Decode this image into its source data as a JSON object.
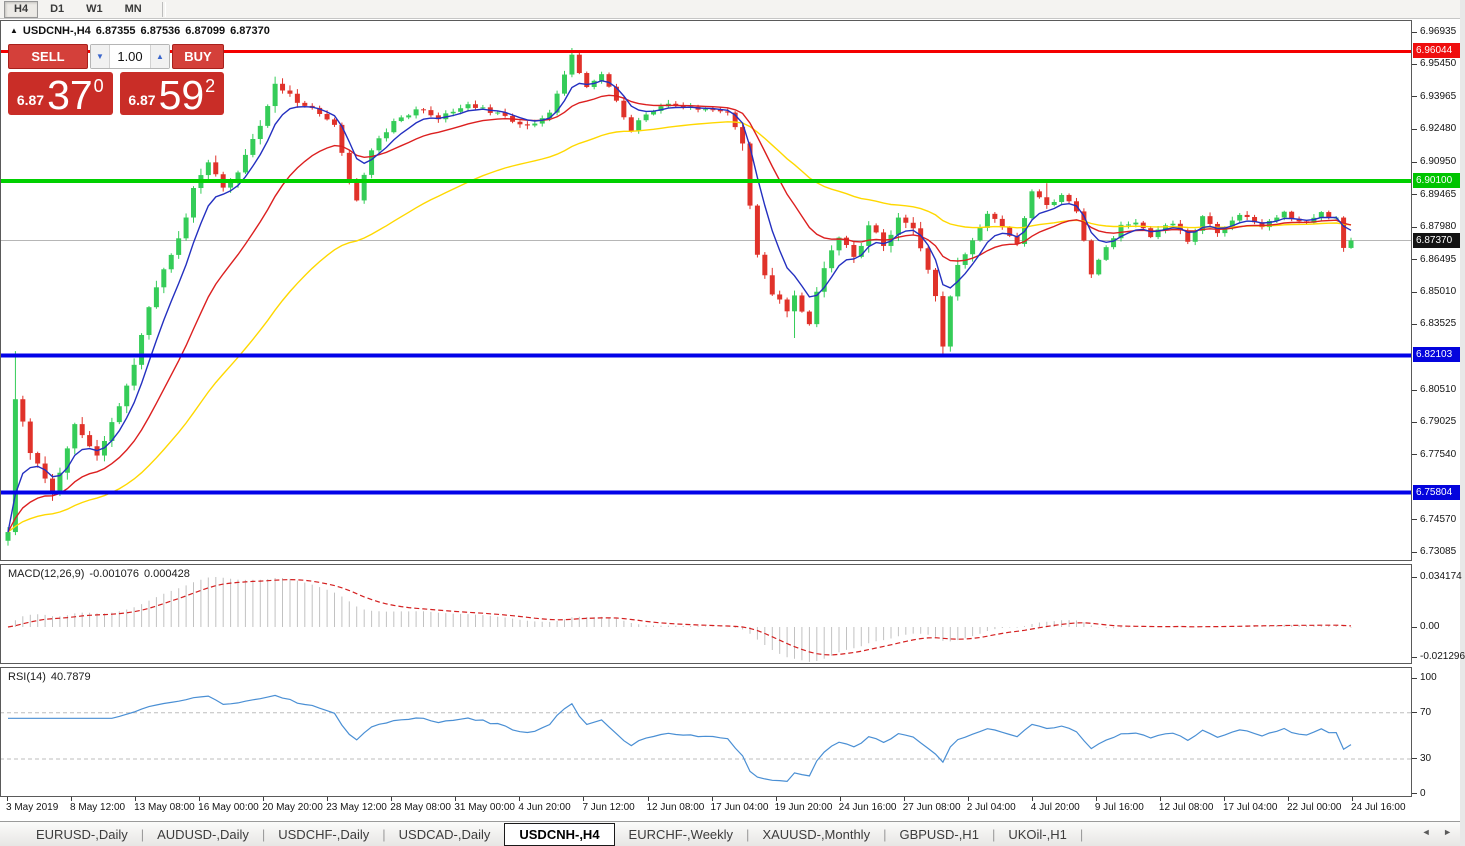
{
  "toolbar": {
    "timeframes": [
      {
        "label": "H4",
        "active": true
      },
      {
        "label": "D1",
        "active": false
      },
      {
        "label": "W1",
        "active": false
      },
      {
        "label": "MN",
        "active": false
      }
    ]
  },
  "chart_header": {
    "arrow": "▲",
    "symbol_label": "USDCNH-,H4",
    "open": "6.87355",
    "high": "6.87536",
    "low": "6.87099",
    "close": "6.87370"
  },
  "trade_panel": {
    "sell_label": "SELL",
    "buy_label": "BUY",
    "volume_value": "1.00",
    "spinner_down": "▼",
    "spinner_up": "▲",
    "sell_price": {
      "prefix": "6.87",
      "big": "37",
      "sup": "0"
    },
    "buy_price": {
      "prefix": "6.87",
      "big": "59",
      "sup": "2"
    }
  },
  "price_axis": {
    "ticks": [
      "6.96935",
      "6.95450",
      "6.93965",
      "6.92480",
      "6.90950",
      "6.89465",
      "6.87980",
      "6.86495",
      "6.85010",
      "6.83525",
      "6.80510",
      "6.79025",
      "6.77540",
      "6.74570",
      "6.73085"
    ],
    "badges": [
      {
        "value": "6.96044",
        "price": 6.96044,
        "color": "#ef0e0e",
        "name": "resistance-level"
      },
      {
        "value": "6.90100",
        "price": 6.901,
        "color": "#00c400",
        "name": "mid-level"
      },
      {
        "value": "6.87370",
        "price": 6.8737,
        "color": "#131313",
        "name": "current-price"
      },
      {
        "value": "6.82103",
        "price": 6.82103,
        "color": "#0404dd",
        "name": "support-level-1"
      },
      {
        "value": "6.75804",
        "price": 6.75804,
        "color": "#0404dd",
        "name": "support-level-2"
      }
    ]
  },
  "time_axis": {
    "labels": [
      "3 May 2019",
      "8 May 12:00",
      "13 May 08:00",
      "16 May 00:00",
      "20 May 20:00",
      "23 May 12:00",
      "28 May 08:00",
      "31 May 00:00",
      "4 Jun 20:00",
      "7 Jun 12:00",
      "12 Jun 08:00",
      "17 Jun 04:00",
      "19 Jun 20:00",
      "24 Jun 16:00",
      "27 Jun 08:00",
      "2 Jul 04:00",
      "4 Jul 20:00",
      "9 Jul 16:00",
      "12 Jul 08:00",
      "17 Jul 04:00",
      "22 Jul 00:00",
      "24 Jul 16:00"
    ]
  },
  "macd_panel": {
    "label": "MACD(12,26,9)",
    "value_main": "-0.001076",
    "value_signal": "0.000428",
    "scale_top": "0.034174",
    "scale_zero": "0.00",
    "scale_bottom": "-0.021296"
  },
  "rsi_panel": {
    "label": "RSI(14)",
    "value": "40.7879",
    "scale": [
      "100",
      "70",
      "30",
      "0"
    ]
  },
  "tabs": {
    "items": [
      {
        "label": "EURUSD-,Daily",
        "active": false
      },
      {
        "label": "AUDUSD-,Daily",
        "active": false
      },
      {
        "label": "USDCHF-,Daily",
        "active": false
      },
      {
        "label": "USDCAD-,Daily",
        "active": false
      },
      {
        "label": "USDCNH-,H4",
        "active": true
      },
      {
        "label": "EURCHF-,Weekly",
        "active": false
      },
      {
        "label": "XAUUSD-,Monthly",
        "active": false
      },
      {
        "label": "GBPUSD-,H1",
        "active": false
      },
      {
        "label": "UKOil-,H1",
        "active": false
      }
    ],
    "scroll_left": "◄",
    "scroll_right": "►"
  },
  "colors": {
    "up": "#35cc58",
    "down": "#e0322a",
    "ma_fast": "#2430c0",
    "ma_mid": "#dc2020",
    "ma_slow": "#ffd800",
    "macd_hist": "#c2c2c2",
    "macd_signal": "#d42020",
    "rsi_line": "#4a8fd4",
    "current_line": "#b6b6b6"
  },
  "chart_data": {
    "type": "candlestick",
    "symbol": "USDCNH",
    "timeframe": "H4",
    "bar_count": 182,
    "visible_range": {
      "price_min": 6.73085,
      "price_max": 6.96935,
      "time_start": "3 May 2019",
      "time_end": "24 Jul 16:00"
    },
    "last_ohlc": {
      "open": 6.87355,
      "high": 6.87536,
      "low": 6.87099,
      "close": 6.8737
    },
    "horizontal_lines": [
      {
        "price": 6.96044,
        "color": "red",
        "style": "solid"
      },
      {
        "price": 6.901,
        "color": "green",
        "style": "solid"
      },
      {
        "price": 6.82103,
        "color": "blue",
        "style": "solid"
      },
      {
        "price": 6.75804,
        "color": "blue",
        "style": "solid"
      },
      {
        "price": 6.8737,
        "color": "gray",
        "style": "current"
      }
    ],
    "close_path": [
      [
        0,
        6.74
      ],
      [
        1,
        6.802
      ],
      [
        3,
        6.776
      ],
      [
        6,
        6.758
      ],
      [
        9,
        6.79
      ],
      [
        12,
        6.776
      ],
      [
        15,
        6.796
      ],
      [
        17,
        6.818
      ],
      [
        19,
        6.842
      ],
      [
        21,
        6.862
      ],
      [
        23,
        6.874
      ],
      [
        25,
        6.896
      ],
      [
        27,
        6.908
      ],
      [
        29,
        6.898
      ],
      [
        31,
        6.904
      ],
      [
        34,
        6.928
      ],
      [
        36,
        6.944
      ],
      [
        38,
        6.94
      ],
      [
        41,
        6.934
      ],
      [
        44,
        6.926
      ],
      [
        46,
        6.902
      ],
      [
        47,
        6.893
      ],
      [
        49,
        6.916
      ],
      [
        52,
        6.928
      ],
      [
        55,
        6.934
      ],
      [
        58,
        6.93
      ],
      [
        62,
        6.936
      ],
      [
        66,
        6.932
      ],
      [
        70,
        6.926
      ],
      [
        73,
        6.932
      ],
      [
        75,
        6.95
      ],
      [
        76,
        6.958
      ],
      [
        78,
        6.944
      ],
      [
        80,
        6.95
      ],
      [
        82,
        6.938
      ],
      [
        84,
        6.924
      ],
      [
        86,
        6.932
      ],
      [
        89,
        6.936
      ],
      [
        93,
        6.934
      ],
      [
        97,
        6.932
      ],
      [
        99,
        6.92
      ],
      [
        100,
        6.89
      ],
      [
        101,
        6.868
      ],
      [
        103,
        6.85
      ],
      [
        105,
        6.84
      ],
      [
        106,
        6.848
      ],
      [
        108,
        6.836
      ],
      [
        110,
        6.862
      ],
      [
        112,
        6.876
      ],
      [
        114,
        6.866
      ],
      [
        116,
        6.88
      ],
      [
        118,
        6.872
      ],
      [
        120,
        6.884
      ],
      [
        122,
        6.878
      ],
      [
        124,
        6.862
      ],
      [
        125,
        6.848
      ],
      [
        126,
        6.826
      ],
      [
        127,
        6.848
      ],
      [
        128,
        6.862
      ],
      [
        130,
        6.874
      ],
      [
        132,
        6.886
      ],
      [
        134,
        6.88
      ],
      [
        136,
        6.872
      ],
      [
        138,
        6.896
      ],
      [
        140,
        6.89
      ],
      [
        142,
        6.894
      ],
      [
        144,
        6.888
      ],
      [
        146,
        6.858
      ],
      [
        148,
        6.87
      ],
      [
        150,
        6.88
      ],
      [
        152,
        6.882
      ],
      [
        154,
        6.876
      ],
      [
        157,
        6.882
      ],
      [
        159,
        6.874
      ],
      [
        161,
        6.884
      ],
      [
        163,
        6.878
      ],
      [
        166,
        6.886
      ],
      [
        169,
        6.88
      ],
      [
        172,
        6.886
      ],
      [
        175,
        6.882
      ],
      [
        177,
        6.886
      ],
      [
        179,
        6.884
      ],
      [
        180,
        6.87
      ],
      [
        181,
        6.8737
      ]
    ],
    "wick_overrides": [
      {
        "bar": 1,
        "high": 6.823
      },
      {
        "bar": 76,
        "high": 6.962
      },
      {
        "bar": 106,
        "low": 6.829
      },
      {
        "bar": 126,
        "low": 6.8205
      },
      {
        "bar": 140,
        "high": 6.9
      }
    ],
    "moving_averages": [
      {
        "period": 6,
        "color": "#2430c0"
      },
      {
        "period": 18,
        "color": "#dc2020"
      },
      {
        "period": 45,
        "color": "#ffd800"
      }
    ],
    "macd": {
      "fast": 12,
      "slow": 26,
      "signal": 9,
      "current_main": -0.001076,
      "current_signal": 0.000428,
      "scale_max": 0.034174,
      "scale_min": -0.021296
    },
    "rsi": {
      "period": 14,
      "current": 40.7879,
      "levels": [
        70,
        30
      ]
    }
  }
}
